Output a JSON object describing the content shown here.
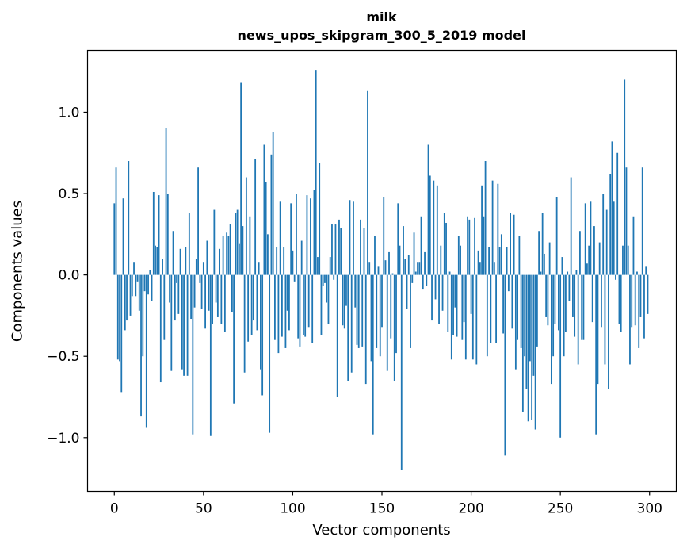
{
  "chart_data": {
    "type": "bar",
    "title": "milk",
    "subtitle": "news_upos_skipgram_300_5_2019 model",
    "xlabel": "Vector components",
    "ylabel": "Components values",
    "xlim": [
      -15,
      315
    ],
    "ylim": [
      -1.33,
      1.38
    ],
    "x_ticks": [
      0,
      50,
      100,
      150,
      200,
      250,
      300
    ],
    "y_ticks": [
      -1.0,
      -0.5,
      0.0,
      0.5,
      1.0
    ],
    "x_tick_labels": [
      "0",
      "50",
      "100",
      "150",
      "200",
      "250",
      "300"
    ],
    "y_tick_labels": [
      "−1.0",
      "−0.5",
      "0.0",
      "0.5",
      "1.0"
    ],
    "bar_color": "#1f77b4",
    "grid": false,
    "values": [
      0.44,
      0.66,
      -0.52,
      -0.53,
      -0.72,
      0.47,
      -0.34,
      -0.28,
      0.7,
      -0.25,
      -0.13,
      0.08,
      -0.13,
      -0.04,
      -0.22,
      -0.87,
      -0.5,
      -0.1,
      -0.94,
      -0.12,
      0.03,
      -0.16,
      0.51,
      0.18,
      0.17,
      0.49,
      -0.66,
      0.1,
      -0.4,
      0.9,
      0.5,
      -0.17,
      -0.59,
      0.27,
      -0.28,
      -0.05,
      -0.24,
      0.16,
      -0.58,
      -0.62,
      0.17,
      -0.62,
      0.38,
      -0.27,
      -0.98,
      -0.2,
      0.1,
      0.66,
      -0.05,
      -0.21,
      0.08,
      -0.33,
      0.21,
      -0.22,
      -0.99,
      -0.3,
      0.4,
      -0.17,
      -0.26,
      0.16,
      -0.3,
      0.24,
      -0.35,
      0.26,
      0.24,
      0.31,
      -0.23,
      -0.79,
      0.38,
      0.4,
      0.19,
      1.18,
      0.3,
      -0.6,
      0.6,
      -0.41,
      0.36,
      -0.37,
      -0.28,
      0.71,
      -0.34,
      0.08,
      -0.58,
      -0.74,
      0.8,
      0.57,
      0.25,
      -0.97,
      0.74,
      0.88,
      -0.4,
      0.17,
      -0.48,
      0.45,
      -0.38,
      0.17,
      -0.45,
      -0.22,
      -0.34,
      0.44,
      0.15,
      -0.04,
      0.5,
      -0.39,
      -0.44,
      0.21,
      -0.37,
      -0.38,
      0.49,
      -0.32,
      0.47,
      -0.42,
      0.52,
      1.26,
      0.11,
      0.69,
      -0.37,
      -0.07,
      -0.05,
      -0.17,
      -0.3,
      0.11,
      0.31,
      -0.03,
      0.31,
      -0.75,
      0.34,
      0.29,
      -0.31,
      -0.33,
      -0.19,
      -0.65,
      0.46,
      -0.6,
      0.45,
      -0.2,
      -0.43,
      -0.45,
      0.34,
      -0.44,
      0.29,
      -0.67,
      1.13,
      0.08,
      -0.53,
      -0.98,
      0.24,
      -0.45,
      0.05,
      -0.5,
      -0.32,
      0.48,
      0.09,
      -0.59,
      0.14,
      -0.39,
      0.01,
      -0.65,
      -0.48,
      0.44,
      0.18,
      -1.2,
      0.3,
      0.1,
      -0.21,
      0.12,
      -0.45,
      -0.05,
      0.26,
      0.02,
      0.08,
      0.08,
      0.36,
      -0.09,
      0.14,
      -0.07,
      0.8,
      0.61,
      -0.28,
      0.58,
      -0.15,
      0.55,
      -0.3,
      0.18,
      -0.22,
      0.38,
      0.32,
      -0.35,
      0.02,
      -0.52,
      -0.37,
      -0.2,
      -0.38,
      0.24,
      0.18,
      -0.4,
      -0.29,
      -0.52,
      0.36,
      0.34,
      -0.24,
      -0.52,
      0.35,
      -0.55,
      0.15,
      0.08,
      0.55,
      0.36,
      0.7,
      -0.5,
      0.17,
      -0.42,
      0.58,
      0.08,
      -0.42,
      0.56,
      0.17,
      0.25,
      -0.36,
      -1.11,
      0.17,
      -0.1,
      0.38,
      -0.33,
      0.37,
      -0.58,
      -0.4,
      0.24,
      -0.45,
      -0.84,
      -0.5,
      -0.7,
      -0.9,
      -0.53,
      -0.89,
      -0.62,
      -0.95,
      -0.44,
      0.27,
      0.02,
      0.38,
      0.13,
      -0.26,
      -0.31,
      0.2,
      -0.67,
      -0.5,
      -0.3,
      0.48,
      -0.34,
      -1.0,
      0.11,
      -0.5,
      -0.35,
      0.02,
      -0.16,
      0.6,
      -0.26,
      -0.38,
      0.03,
      -0.55,
      0.27,
      -0.4,
      -0.4,
      0.44,
      0.07,
      0.18,
      0.45,
      -0.29,
      0.3,
      -0.98,
      -0.67,
      0.2,
      -0.32,
      0.5,
      -0.55,
      0.4,
      -0.7,
      0.62,
      0.82,
      0.45,
      -0.03,
      0.75,
      -0.3,
      -0.35,
      0.18,
      1.2,
      0.66,
      0.18,
      -0.55,
      -0.32,
      0.36,
      -0.31,
      0.02,
      -0.45,
      -0.26,
      0.66,
      -0.39,
      0.05,
      -0.24
    ]
  }
}
